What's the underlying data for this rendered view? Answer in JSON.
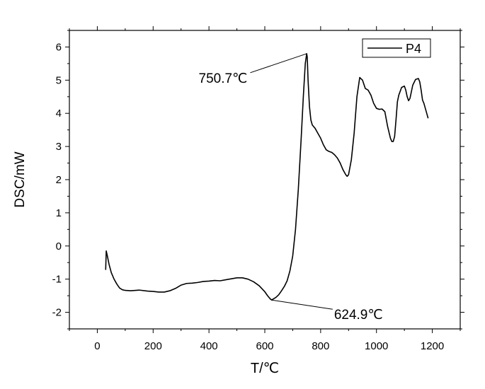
{
  "chart_data": {
    "type": "line",
    "title": "",
    "xlabel": "T/℃",
    "ylabel": "DSC/mW",
    "xlim": [
      -100,
      1300
    ],
    "ylim": [
      -2.5,
      6.5
    ],
    "xticks": [
      0,
      200,
      400,
      600,
      800,
      1000,
      1200
    ],
    "yticks": [
      -2,
      -1,
      0,
      1,
      2,
      3,
      4,
      5,
      6
    ],
    "grid": false,
    "legend_position": "top-right",
    "series": [
      {
        "name": "P4",
        "color": "#000000",
        "x": [
          30,
          32,
          36,
          42,
          50,
          60,
          70,
          80,
          90,
          100,
          120,
          150,
          180,
          200,
          220,
          240,
          260,
          280,
          300,
          320,
          340,
          360,
          380,
          400,
          420,
          440,
          460,
          480,
          500,
          520,
          540,
          560,
          580,
          600,
          610,
          620,
          625,
          630,
          640,
          650,
          660,
          670,
          680,
          690,
          700,
          710,
          720,
          730,
          738,
          745,
          750,
          752,
          755,
          760,
          765,
          770,
          775,
          780,
          790,
          800,
          810,
          820,
          830,
          840,
          850,
          860,
          870,
          880,
          890,
          895,
          900,
          910,
          920,
          930,
          940,
          950,
          960,
          970,
          980,
          990,
          1000,
          1010,
          1020,
          1030,
          1040,
          1050,
          1055,
          1060,
          1065,
          1070,
          1075,
          1080,
          1090,
          1100,
          1105,
          1110,
          1115,
          1120,
          1130,
          1140,
          1150,
          1155,
          1160,
          1165,
          1170,
          1175,
          1180,
          1185
        ],
        "y": [
          -0.72,
          -0.15,
          -0.3,
          -0.55,
          -0.8,
          -1.0,
          -1.15,
          -1.27,
          -1.32,
          -1.34,
          -1.35,
          -1.33,
          -1.36,
          -1.37,
          -1.39,
          -1.39,
          -1.35,
          -1.28,
          -1.18,
          -1.13,
          -1.12,
          -1.1,
          -1.07,
          -1.06,
          -1.04,
          -1.05,
          -1.02,
          -0.99,
          -0.96,
          -0.96,
          -1.0,
          -1.08,
          -1.2,
          -1.38,
          -1.5,
          -1.6,
          -1.63,
          -1.6,
          -1.55,
          -1.47,
          -1.35,
          -1.22,
          -1.05,
          -0.75,
          -0.3,
          0.5,
          1.7,
          3.2,
          4.5,
          5.5,
          5.8,
          5.7,
          5.0,
          4.2,
          3.8,
          3.65,
          3.6,
          3.55,
          3.4,
          3.25,
          3.05,
          2.9,
          2.85,
          2.82,
          2.75,
          2.65,
          2.5,
          2.3,
          2.15,
          2.1,
          2.15,
          2.6,
          3.4,
          4.5,
          5.08,
          5.0,
          4.75,
          4.7,
          4.55,
          4.3,
          4.15,
          4.12,
          4.13,
          4.05,
          3.6,
          3.25,
          3.15,
          3.15,
          3.3,
          3.8,
          4.35,
          4.55,
          4.78,
          4.82,
          4.7,
          4.5,
          4.38,
          4.45,
          4.85,
          5.02,
          5.05,
          4.95,
          4.7,
          4.4,
          4.3,
          4.15,
          4.0,
          3.85
        ]
      }
    ],
    "annotations": [
      {
        "text": "750.7℃",
        "x": 750.7,
        "y": 5.8,
        "label_position": "lower-left"
      },
      {
        "text": "624.9℃",
        "x": 624.9,
        "y": -1.63,
        "label_position": "lower-right"
      }
    ]
  }
}
